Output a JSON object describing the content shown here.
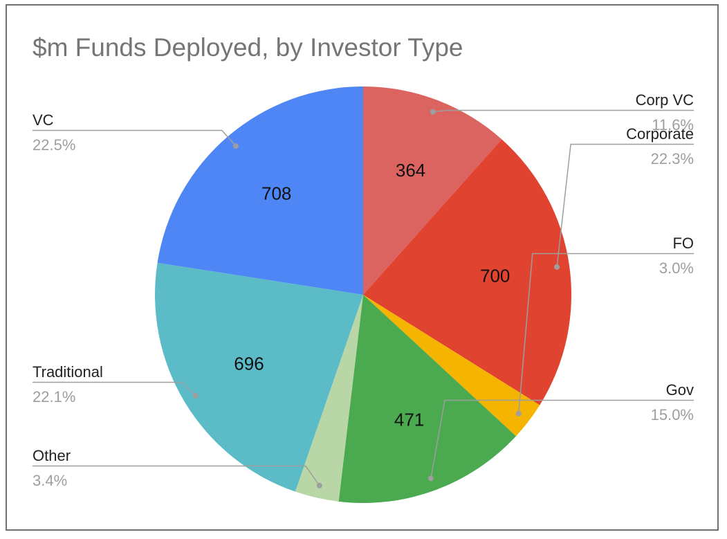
{
  "chart_data": {
    "type": "pie",
    "title": "$m Funds Deployed, by Investor Type",
    "slices": [
      {
        "label": "Corp VC",
        "value": 364,
        "value_label": "364",
        "percent_label": "11.6%",
        "color": "#DB6461"
      },
      {
        "label": "Corporate",
        "value": 700,
        "value_label": "700",
        "percent_label": "22.3%",
        "color": "#E0432F"
      },
      {
        "label": "FO",
        "value": 94,
        "value_label": "",
        "percent_label": "3.0%",
        "color": "#F4B400"
      },
      {
        "label": "Gov",
        "value": 471,
        "value_label": "471",
        "percent_label": "15.0%",
        "color": "#4BA950"
      },
      {
        "label": "Other",
        "value": 107,
        "value_label": "",
        "percent_label": "3.4%",
        "color": "#B9D6A6"
      },
      {
        "label": "Traditional",
        "value": 696,
        "value_label": "696",
        "percent_label": "22.1%",
        "color": "#5BBCC7"
      },
      {
        "label": "VC",
        "value": 708,
        "value_label": "708",
        "percent_label": "22.5%",
        "color": "#4F86F5"
      }
    ],
    "legend": "none"
  }
}
